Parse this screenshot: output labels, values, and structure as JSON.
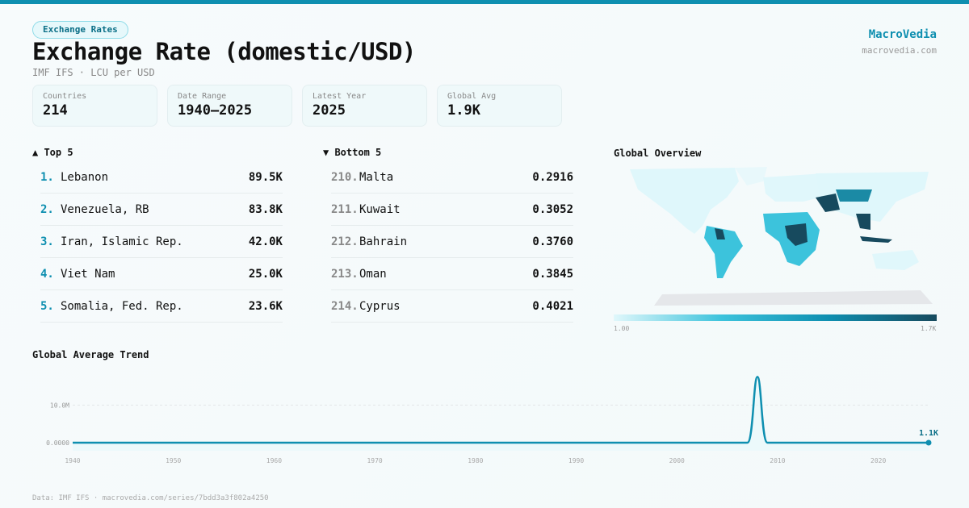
{
  "header": {
    "badge": "Exchange Rates",
    "title": "Exchange Rate (domestic/USD)",
    "subtitle": "IMF IFS · LCU per USD",
    "brand": "MacroVedia",
    "brand_url": "macrovedia.com"
  },
  "stats": [
    {
      "label": "Countries",
      "value": "214"
    },
    {
      "label": "Date Range",
      "value": "1940–2025"
    },
    {
      "label": "Latest Year",
      "value": "2025"
    },
    {
      "label": "Global Avg",
      "value": "1.9K"
    }
  ],
  "top5": {
    "title": "▲ Top 5",
    "items": [
      {
        "rank": "1.",
        "name": "Lebanon",
        "value": "89.5K"
      },
      {
        "rank": "2.",
        "name": "Venezuela, RB",
        "value": "83.8K"
      },
      {
        "rank": "3.",
        "name": "Iran, Islamic Rep.",
        "value": "42.0K"
      },
      {
        "rank": "4.",
        "name": "Viet Nam",
        "value": "25.0K"
      },
      {
        "rank": "5.",
        "name": "Somalia, Fed. Rep.",
        "value": "23.6K"
      }
    ]
  },
  "bottom5": {
    "title": "▼ Bottom 5",
    "items": [
      {
        "rank": "210.",
        "name": "Malta",
        "value": "0.2916"
      },
      {
        "rank": "211.",
        "name": "Kuwait",
        "value": "0.3052"
      },
      {
        "rank": "212.",
        "name": "Bahrain",
        "value": "0.3760"
      },
      {
        "rank": "213.",
        "name": "Oman",
        "value": "0.3845"
      },
      {
        "rank": "214.",
        "name": "Cyprus",
        "value": "0.4021"
      }
    ]
  },
  "map": {
    "title": "Global Overview",
    "legend_min": "1.00",
    "legend_max": "1.7K"
  },
  "trend": {
    "title": "Global Average Trend",
    "y_ticks": [
      "0.0000",
      "10.0M"
    ],
    "last_label": "1.1K"
  },
  "chart_data": {
    "type": "line",
    "title": "Global Average Trend",
    "x": [
      1940,
      2006,
      2007,
      2008,
      2009,
      2010,
      2025
    ],
    "values": [
      0,
      0,
      100000,
      17500000,
      100000,
      1100,
      1100
    ],
    "xlim": [
      1940,
      2025
    ],
    "ylim": [
      0,
      18000000
    ],
    "x_ticks": [
      "1940",
      "1950",
      "1960",
      "1970",
      "1980",
      "1990",
      "2000",
      "2010",
      "2020"
    ],
    "y_ticks": [
      0,
      10000000
    ],
    "color": "#0e8fb0"
  },
  "footer": "Data: IMF IFS · macrovedia.com/series/7bdd3a3f802a4250"
}
